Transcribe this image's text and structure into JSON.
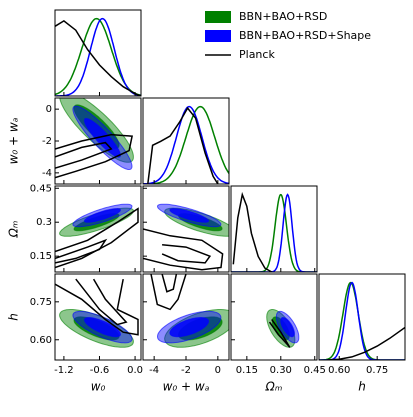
{
  "chart_data": {
    "type": "corner",
    "legend": "upper right",
    "params": [
      {
        "label": "w₀",
        "lim": [
          -1.35,
          0.1
        ],
        "xticks": [
          -1.2,
          -0.6,
          {
            "value": 0,
            "label": "0.0"
          }
        ]
      },
      {
        "label": "w₀ + wₐ",
        "lim": [
          -4.7,
          0.7
        ],
        "xticks": [
          -4,
          -2,
          0
        ],
        "yticks": [
          0,
          -2,
          -4
        ]
      },
      {
        "label": "Ωₘ",
        "lim": [
          0.08,
          0.46
        ],
        "xticks": [
          0.15,
          {
            "value": 0.3,
            "label": "0.30"
          },
          0.45
        ],
        "yticks": [
          0.45,
          0.3,
          0.15
        ]
      },
      {
        "label": "h",
        "lim": [
          0.52,
          0.86
        ],
        "xticks": [
          {
            "value": 0.6,
            "label": "0.60"
          },
          0.75
        ],
        "yticks": [
          0.75,
          {
            "value": 0.6,
            "label": "0.60"
          }
        ]
      }
    ],
    "series": [
      {
        "name": "BBN+BAO+RSD",
        "color": "#008000",
        "mean": [
          -0.65,
          -1.1,
          0.3,
          0.645
        ],
        "sigma": [
          0.25,
          0.9,
          0.025,
          0.03
        ],
        "corr": [
          -0.85,
          0.8,
          -0.7,
          -0.75,
          0.55,
          -0.6
        ]
      },
      {
        "name": "BBN+BAO+RSD+Shape",
        "color": "#0000ff",
        "mean": [
          -0.55,
          -1.8,
          0.33,
          0.65
        ],
        "sigma": [
          0.2,
          0.8,
          0.02,
          0.025
        ],
        "corr": [
          -0.9,
          0.8,
          -0.75,
          -0.8,
          0.6,
          -0.65
        ]
      },
      {
        "name": "Planck",
        "color": "#000000",
        "marginals": [
          {
            "x": [
              -1.35,
              -1.2,
              -1.0,
              -0.8,
              -0.6,
              -0.4,
              -0.2,
              0,
              0.1
            ],
            "y": [
              0.9,
              0.97,
              0.85,
              0.6,
              0.4,
              0.25,
              0.12,
              0.03,
              0.0
            ]
          },
          {
            "x": [
              -4.4,
              -4.1,
              -3.6,
              -3.0,
              -2.4,
              -1.9,
              -1.4,
              -0.8,
              -0.3,
              0
            ],
            "y": [
              0,
              0.5,
              0.55,
              0.62,
              0.8,
              0.98,
              0.85,
              0.4,
              0.1,
              0
            ]
          },
          {
            "x": [
              0.09,
              0.11,
              0.13,
              0.15,
              0.17,
              0.2,
              0.23,
              0.26
            ],
            "y": [
              0.1,
              0.7,
              1.0,
              0.85,
              0.5,
              0.2,
              0.05,
              0
            ]
          },
          {
            "x": [
              0.55,
              0.6,
              0.65,
              0.7,
              0.75,
              0.8,
              0.86
            ],
            "y": [
              0,
              0.01,
              0.04,
              0.1,
              0.18,
              0.28,
              0.42
            ]
          }
        ],
        "contours": [
          [
            {
              "x": [
                -1.35,
                -0.9,
                -0.4,
                -0.05,
                -0.1,
                -0.5,
                -1.0,
                -1.35
              ],
              "y": [
                -2.5,
                -2.0,
                -1.6,
                -1.7,
                -2.6,
                -3.3,
                -3.9,
                -4.3
              ]
            },
            {
              "x": [
                -1.35,
                -0.9,
                -0.5,
                -0.4,
                -0.9,
                -1.35
              ],
              "y": [
                -3.0,
                -2.4,
                -2.1,
                -2.5,
                -3.2,
                -3.7
              ]
            }
          ],
          [
            {
              "x": [
                -1.35,
                -0.8,
                -0.3,
                0.05,
                0.05,
                -0.4,
                -0.9,
                -1.35
              ],
              "y": [
                0.17,
                0.22,
                0.3,
                0.36,
                0.3,
                0.21,
                0.14,
                0.1
              ]
            },
            {
              "x": [
                -1.35,
                -0.8,
                -0.5,
                -0.6,
                -1.0,
                -1.35
              ],
              "y": [
                0.14,
                0.19,
                0.22,
                0.18,
                0.14,
                0.12
              ]
            }
          ],
          [
            {
              "x": [
                -1.35,
                -0.9,
                -0.5,
                -0.2,
                0.05,
                0.05,
                -0.3,
                -0.2
              ],
              "y": [
                0.82,
                0.76,
                0.68,
                0.63,
                0.62,
                0.68,
                0.72,
                0.84
              ]
            },
            {
              "x": [
                -1.0,
                -0.6,
                -0.3,
                -0.15,
                -0.5,
                -0.7
              ],
              "y": [
                0.84,
                0.72,
                0.66,
                0.67,
                0.76,
                0.84
              ]
            }
          ],
          [
            {
              "x": [
                -4.7,
                -3,
                -1,
                0.3,
                0.2,
                -1,
                -3,
                -4.7
              ],
              "y": [
                0.27,
                0.24,
                0.22,
                0.16,
                0.1,
                0.09,
                0.11,
                0.14
              ]
            },
            {
              "x": [
                -3.5,
                -2,
                -0.5,
                -0.8,
                -2.5,
                -3.5
              ],
              "y": [
                0.2,
                0.19,
                0.15,
                0.12,
                0.13,
                0.16
              ]
            }
          ],
          [
            {
              "x": [
                -4.2,
                -3.8,
                -3,
                -2.5,
                -2
              ],
              "y": [
                0.86,
                0.74,
                0.72,
                0.76,
                0.86
              ]
            },
            {
              "x": [
                -3.5,
                -3.2,
                -2.8,
                -2.6
              ],
              "y": [
                0.86,
                0.79,
                0.8,
                0.86
              ]
            }
          ],
          [
            {
              "x": [
                0.26,
                0.3,
                0.34,
                0.33,
                0.29,
                0.25
              ],
              "y": [
                0.68,
                0.63,
                0.57,
                0.58,
                0.62,
                0.67
              ]
            }
          ]
        ]
      }
    ]
  }
}
